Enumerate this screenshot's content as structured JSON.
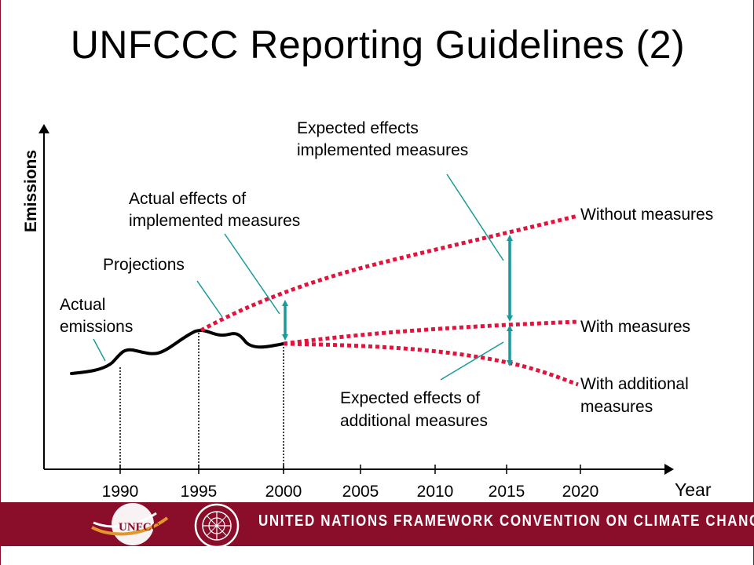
{
  "slide": {
    "title": "UNFCCC Reporting Guidelines (2)",
    "footer": "UNITED NATIONS FRAMEWORK CONVENTION ON CLIMATE CHANGE",
    "logo_text": "UNFCCC"
  },
  "chart_data": {
    "type": "line",
    "ylabel": "Emissions",
    "xlabel": "Year",
    "x_ticks": [
      "1990",
      "1995",
      "2000",
      "2005",
      "2010",
      "2015",
      "2020"
    ],
    "series": [
      {
        "name": "Actual emissions",
        "style": "solid",
        "color": "#000000"
      },
      {
        "name": "Without measures",
        "style": "dotted",
        "color": "#e0143c"
      },
      {
        "name": "With measures",
        "style": "dotted",
        "color": "#e0143c"
      },
      {
        "name": "With additional measures",
        "style": "dotted",
        "color": "#e0143c"
      }
    ],
    "annotations": {
      "actual_emissions": [
        "Actual",
        "emissions"
      ],
      "projections": "Projections",
      "actual_effects": [
        "Actual effects of",
        "implemented measures"
      ],
      "expected_implemented": [
        "Expected effects",
        "implemented measures"
      ],
      "expected_additional": [
        "Expected effects of",
        "additional measures"
      ],
      "without_measures": "Without measures",
      "with_measures": "With measures",
      "with_additional": [
        "With additional",
        "measures"
      ]
    },
    "colors": {
      "projection": "#e0143c",
      "arrow": "#1a9a9a",
      "pointer": "#1a9a9a"
    }
  }
}
